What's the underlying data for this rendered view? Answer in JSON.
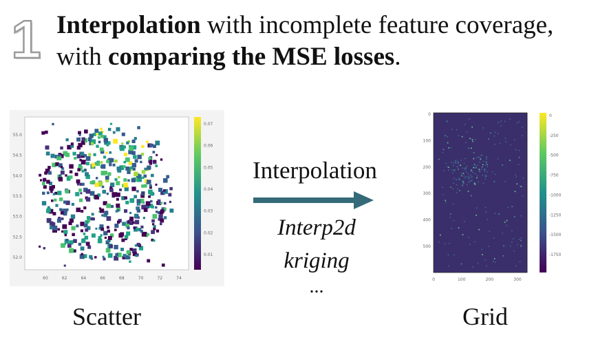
{
  "step_number": "1",
  "headline": {
    "part1_bold": "Interpolation",
    "part2": " with incomplete feature coverage, with ",
    "part3_bold": "comparing the MSE losses",
    "part4": "."
  },
  "center": {
    "arrow_label": "Interpolation",
    "methods": [
      "Interp2d",
      "kriging"
    ],
    "ellipsis": "..."
  },
  "captions": {
    "left": "Scatter",
    "right": "Grid"
  },
  "colors": {
    "arrow": "#356a78",
    "viridis_dark": "#440154",
    "viridis_mid": "#21918c",
    "viridis_light": "#fde725",
    "grid_bg": "#3b2f6b"
  },
  "scatter_plot": {
    "x_ticks": [
      "60",
      "62",
      "64",
      "66",
      "68",
      "70",
      "72",
      "74"
    ],
    "y_ticks": [
      "55.0",
      "54.5",
      "54.0",
      "53.5",
      "53.0",
      "52.5",
      "52.0"
    ],
    "colorbar_ticks": [
      "0.07",
      "0.06",
      "0.05",
      "0.04",
      "0.03",
      "0.02",
      "0.01"
    ]
  },
  "grid_plot": {
    "x_ticks": [
      "0",
      "100",
      "200",
      "300"
    ],
    "y_ticks": [
      "0",
      "100",
      "200",
      "300",
      "400",
      "500"
    ],
    "colorbar_ticks": [
      "0",
      "-250",
      "-500",
      "-750",
      "-1000",
      "-1250",
      "-1500",
      "-1750"
    ]
  }
}
